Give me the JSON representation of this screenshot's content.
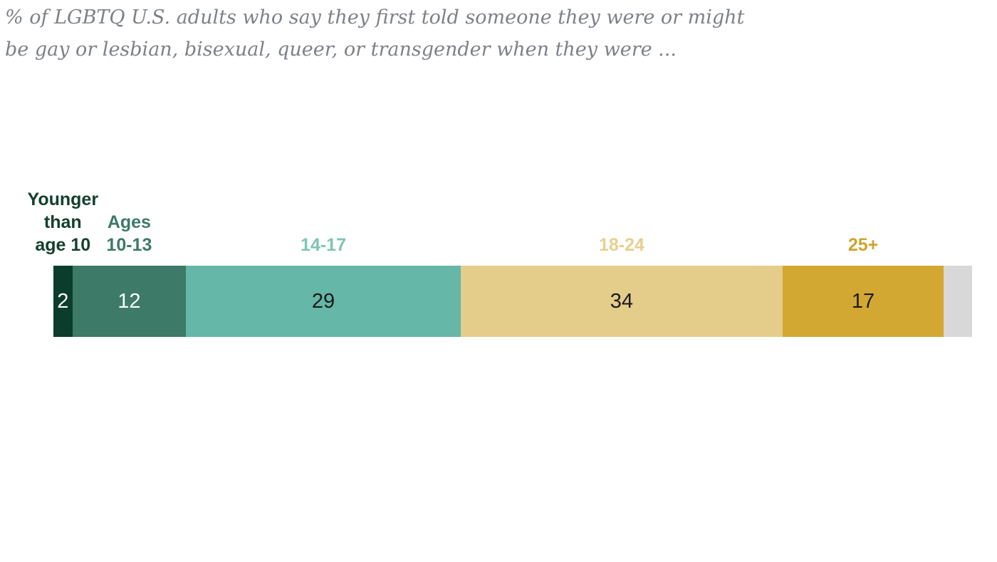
{
  "subtitle": {
    "line1": "% of LGBTQ U.S. adults who say they first told someone they were or might",
    "line2": "be gay or lesbian, bisexual, queer, or transgender when they were ..."
  },
  "chart_data": {
    "type": "bar",
    "variant": "horizontal-stacked",
    "title": "% of LGBTQ U.S. adults who say they first told someone they were or might be gay or lesbian, bisexual, queer, or transgender when they were ...",
    "unit": "%",
    "axis_range": [
      0,
      100
    ],
    "grid": false,
    "legend_position": "labels-above-segments",
    "background_color": "#ffffff",
    "subtitle_color": "#7e8186",
    "segments": [
      {
        "label": "Younger\nthan\nage 10",
        "value": 2,
        "show_value": true,
        "bar_color": "#0b3d2c",
        "label_color": "#14402e",
        "value_color": "#ffffff"
      },
      {
        "label": "Ages\n10-13",
        "value": 12,
        "show_value": true,
        "bar_color": "#3d7a68",
        "label_color": "#3d7a68",
        "value_color": "#ffffff"
      },
      {
        "label": "14-17",
        "value": 29,
        "show_value": true,
        "bar_color": "#65b7a8",
        "label_color": "#7dc5b5",
        "value_color": "#1a1a1a"
      },
      {
        "label": "18-24",
        "value": 34,
        "show_value": true,
        "bar_color": "#e4cc8a",
        "label_color": "#e7cf8e",
        "value_color": "#1a1a1a"
      },
      {
        "label": "25+",
        "value": 17,
        "show_value": true,
        "bar_color": "#d2a832",
        "label_color": "#cfa42e",
        "value_color": "#1a1a1a"
      },
      {
        "label": "",
        "value": 3,
        "estimated": true,
        "show_value": false,
        "bar_color": "#d8d8d8",
        "label_color": "",
        "value_color": ""
      }
    ]
  }
}
